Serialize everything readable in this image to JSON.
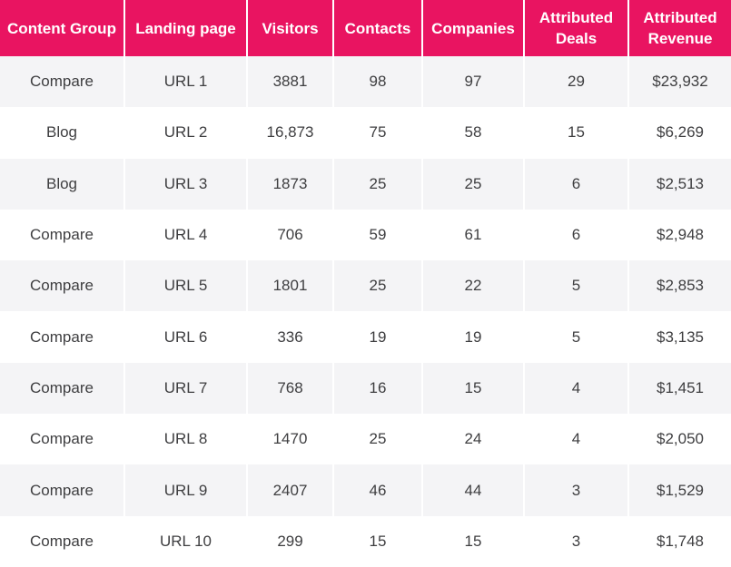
{
  "colors": {
    "header_background": "#e91461",
    "header_text": "#ffffff",
    "row_alt_background": "#f4f4f6",
    "row_background": "#ffffff",
    "cell_text": "#3e3e40"
  },
  "chart_data": {
    "type": "table",
    "columns": [
      "Content Group",
      "Landing page",
      "Visitors",
      "Contacts",
      "Companies",
      "Attributed Deals",
      "Attributed Revenue"
    ],
    "rows": [
      [
        "Compare",
        "URL 1",
        "3881",
        "98",
        "97",
        "29",
        "$23,932"
      ],
      [
        "Blog",
        "URL 2",
        "16,873",
        "75",
        "58",
        "15",
        "$6,269"
      ],
      [
        "Blog",
        "URL 3",
        "1873",
        "25",
        "25",
        "6",
        "$2,513"
      ],
      [
        "Compare",
        "URL 4",
        "706",
        "59",
        "61",
        "6",
        "$2,948"
      ],
      [
        "Compare",
        "URL 5",
        "1801",
        "25",
        "22",
        "5",
        "$2,853"
      ],
      [
        "Compare",
        "URL 6",
        "336",
        "19",
        "19",
        "5",
        "$3,135"
      ],
      [
        "Compare",
        "URL 7",
        "768",
        "16",
        "15",
        "4",
        "$1,451"
      ],
      [
        "Compare",
        "URL 8",
        "1470",
        "25",
        "24",
        "4",
        "$2,050"
      ],
      [
        "Compare",
        "URL 9",
        "2407",
        "46",
        "44",
        "3",
        "$1,529"
      ],
      [
        "Compare",
        "URL 10",
        "299",
        "15",
        "15",
        "3",
        "$1,748"
      ]
    ]
  }
}
